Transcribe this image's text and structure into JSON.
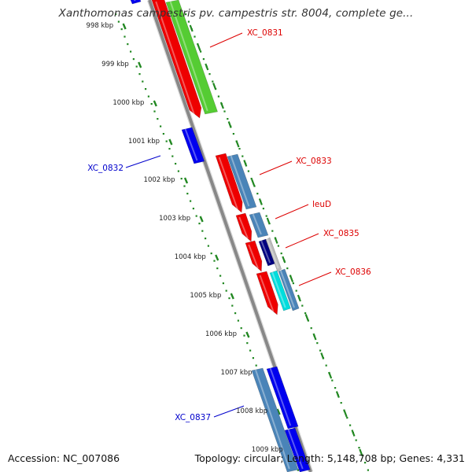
{
  "title": "Xanthomonas campestris pv. campestris str. 8004, complete ge...",
  "footer": {
    "accession": "Accession: NC_007086",
    "topology": "Topology: circular; Length: 5,148,708 bp; Genes: 4,331"
  },
  "ruler": {
    "unit": "kbp",
    "ticks": [
      {
        "label": "998 kbp",
        "kbp": 998
      },
      {
        "label": "999 kbp",
        "kbp": 999
      },
      {
        "label": "1000 kbp",
        "kbp": 1000
      },
      {
        "label": "1001 kbp",
        "kbp": 1001
      },
      {
        "label": "1002 kbp",
        "kbp": 1002
      },
      {
        "label": "1003 kbp",
        "kbp": 1003
      },
      {
        "label": "1004 kbp",
        "kbp": 1004
      },
      {
        "label": "1005 kbp",
        "kbp": 1005
      },
      {
        "label": "1006 kbp",
        "kbp": 1006
      },
      {
        "label": "1007 kbp",
        "kbp": 1007
      },
      {
        "label": "1008 kbp",
        "kbp": 1008
      },
      {
        "label": "1009 kbp",
        "kbp": 1009
      }
    ]
  },
  "gene_labels": [
    {
      "name": "XC_0831",
      "color": "#dd0000"
    },
    {
      "name": "XC_0832",
      "color": "#0000cc"
    },
    {
      "name": "XC_0833",
      "color": "#dd0000"
    },
    {
      "name": "leuD",
      "color": "#dd0000"
    },
    {
      "name": "XC_0835",
      "color": "#dd0000"
    },
    {
      "name": "XC_0836",
      "color": "#dd0000"
    },
    {
      "name": "XC_0837",
      "color": "#0000cc"
    }
  ],
  "colors": {
    "forward_cds": "#ee0000",
    "reverse_cds": "#0000ee",
    "feature_green": "#55cc33",
    "feature_steelblue": "#4a84b8",
    "feature_navy": "#000080",
    "feature_cyan": "#00dddd",
    "backbone": "#888888",
    "ruler_dots": "#228822",
    "ruler_label": "#222222"
  }
}
